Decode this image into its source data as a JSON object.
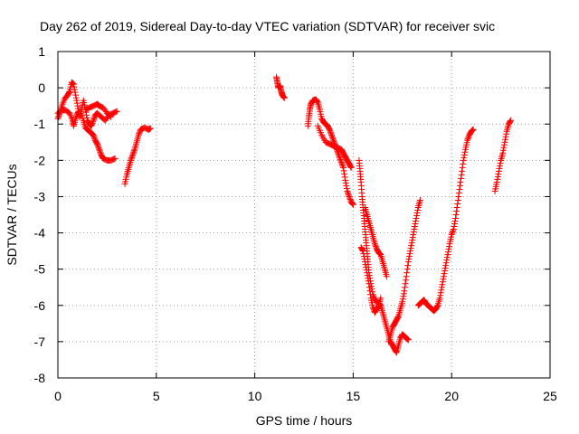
{
  "chart_data": {
    "type": "scatter",
    "title": "Day 262 of 2019, Sidereal Day-to-day VTEC variation (SDTVAR) for receiver svic",
    "xlabel": "GPS time / hours",
    "ylabel": "SDTVAR / TECUs",
    "xlim": [
      0,
      25
    ],
    "ylim": [
      -8,
      1
    ],
    "x_ticks": [
      0,
      5,
      10,
      15,
      20,
      25
    ],
    "x_tick_labels": [
      "0",
      "5",
      "10",
      "15",
      "20",
      "25"
    ],
    "y_ticks": [
      1,
      0,
      -1,
      -2,
      -3,
      -4,
      -5,
      -6,
      -7,
      -8
    ],
    "y_tick_labels": [
      "1",
      "0",
      "-1",
      "-2",
      "-3",
      "-4",
      "-5",
      "-6",
      "-7",
      "-8"
    ],
    "grid": true,
    "marker": "+",
    "series": [
      {
        "name": "SDTVAR",
        "color": "#ff0000",
        "segments": [
          [
            [
              0.0,
              -0.85
            ],
            [
              0.1,
              -0.7
            ],
            [
              0.2,
              -0.5
            ],
            [
              0.35,
              -0.3
            ],
            [
              0.5,
              -0.2
            ],
            [
              0.6,
              -0.1
            ],
            [
              0.7,
              0.15
            ],
            [
              0.8,
              0.1
            ],
            [
              0.9,
              -0.2
            ],
            [
              1.0,
              -0.5
            ],
            [
              1.1,
              -0.8
            ],
            [
              1.2,
              -0.6
            ],
            [
              1.3,
              -0.35
            ],
            [
              1.4,
              -0.6
            ],
            [
              1.5,
              -0.9
            ],
            [
              1.6,
              -1.0
            ],
            [
              1.7,
              -1.05
            ],
            [
              1.8,
              -0.9
            ],
            [
              1.9,
              -0.75
            ],
            [
              2.0,
              -0.7
            ],
            [
              2.2,
              -0.8
            ],
            [
              2.4,
              -0.9
            ],
            [
              2.6,
              -0.75
            ],
            [
              2.8,
              -0.7
            ],
            [
              3.0,
              -0.65
            ]
          ],
          [
            [
              0.0,
              -0.7
            ],
            [
              0.2,
              -0.6
            ],
            [
              0.4,
              -0.62
            ],
            [
              0.6,
              -0.7
            ],
            [
              0.75,
              -0.9
            ],
            [
              0.8,
              -1.05
            ],
            [
              0.9,
              -0.85
            ],
            [
              1.0,
              -0.7
            ],
            [
              1.1,
              -0.65
            ],
            [
              1.3,
              -0.9
            ],
            [
              1.4,
              -1.1
            ],
            [
              1.5,
              -1.15
            ],
            [
              1.6,
              -1.2
            ],
            [
              1.7,
              -1.25
            ],
            [
              1.8,
              -1.3
            ],
            [
              1.9,
              -1.45
            ],
            [
              2.0,
              -1.55
            ],
            [
              2.1,
              -1.7
            ],
            [
              2.2,
              -1.85
            ],
            [
              2.3,
              -1.95
            ],
            [
              2.5,
              -2.0
            ],
            [
              2.7,
              -2.0
            ],
            [
              2.9,
              -1.95
            ]
          ],
          [
            [
              1.4,
              -0.6
            ],
            [
              1.6,
              -0.55
            ],
            [
              1.8,
              -0.5
            ],
            [
              2.0,
              -0.45
            ],
            [
              2.1,
              -0.5
            ],
            [
              2.3,
              -0.55
            ],
            [
              2.5,
              -0.7
            ],
            [
              2.7,
              -0.8
            ]
          ],
          [
            [
              3.4,
              -2.65
            ],
            [
              3.5,
              -2.4
            ],
            [
              3.6,
              -2.2
            ],
            [
              3.7,
              -2.0
            ],
            [
              3.8,
              -1.85
            ],
            [
              3.9,
              -1.7
            ],
            [
              4.0,
              -1.5
            ],
            [
              4.1,
              -1.3
            ],
            [
              4.2,
              -1.15
            ],
            [
              4.4,
              -1.1
            ],
            [
              4.6,
              -1.15
            ],
            [
              4.7,
              -1.12
            ]
          ],
          [
            [
              11.1,
              0.3
            ],
            [
              11.15,
              0.15
            ],
            [
              11.2,
              0.0
            ],
            [
              11.3,
              0.05
            ],
            [
              11.35,
              -0.1
            ],
            [
              11.4,
              -0.2
            ],
            [
              11.5,
              -0.28
            ]
          ],
          [
            [
              12.7,
              -1.05
            ],
            [
              12.75,
              -0.8
            ],
            [
              12.8,
              -0.6
            ],
            [
              12.85,
              -0.45
            ],
            [
              12.95,
              -0.35
            ],
            [
              13.1,
              -0.32
            ],
            [
              13.2,
              -0.4
            ],
            [
              13.3,
              -0.6
            ],
            [
              13.4,
              -0.85
            ],
            [
              13.5,
              -0.95
            ],
            [
              13.6,
              -1.0
            ],
            [
              13.7,
              -1.05
            ],
            [
              13.8,
              -1.15
            ],
            [
              13.9,
              -1.3
            ],
            [
              14.0,
              -1.45
            ],
            [
              14.1,
              -1.6
            ],
            [
              14.2,
              -1.75
            ],
            [
              14.3,
              -1.9
            ],
            [
              14.4,
              -2.05
            ],
            [
              14.5,
              -2.2
            ],
            [
              14.6,
              -2.55
            ],
            [
              14.7,
              -2.85
            ],
            [
              14.8,
              -3.0
            ],
            [
              14.9,
              -3.15
            ],
            [
              15.0,
              -3.22
            ]
          ],
          [
            [
              13.2,
              -1.05
            ],
            [
              13.4,
              -1.3
            ],
            [
              13.6,
              -1.5
            ],
            [
              13.8,
              -1.55
            ],
            [
              14.0,
              -1.6
            ],
            [
              14.2,
              -1.65
            ],
            [
              14.4,
              -1.7
            ],
            [
              14.5,
              -1.8
            ],
            [
              14.6,
              -1.9
            ],
            [
              14.7,
              -2.0
            ],
            [
              14.8,
              -2.1
            ],
            [
              14.9,
              -2.2
            ]
          ],
          [
            [
              15.3,
              -2.0
            ],
            [
              15.35,
              -2.3
            ],
            [
              15.4,
              -2.6
            ],
            [
              15.45,
              -3.0
            ],
            [
              15.5,
              -3.3
            ],
            [
              15.55,
              -3.6
            ],
            [
              15.6,
              -3.9
            ],
            [
              15.65,
              -4.2
            ],
            [
              15.7,
              -4.5
            ],
            [
              15.75,
              -4.8
            ],
            [
              15.8,
              -5.1
            ],
            [
              15.9,
              -5.4
            ],
            [
              16.0,
              -5.7
            ],
            [
              16.1,
              -5.85
            ],
            [
              16.2,
              -5.9
            ],
            [
              16.3,
              -5.95
            ],
            [
              16.4,
              -6.0
            ],
            [
              16.5,
              -6.2
            ],
            [
              16.6,
              -6.4
            ],
            [
              16.7,
              -6.6
            ],
            [
              16.8,
              -6.8
            ],
            [
              16.9,
              -7.0
            ],
            [
              17.0,
              -7.1
            ],
            [
              17.1,
              -7.2
            ],
            [
              17.2,
              -7.3
            ],
            [
              17.3,
              -7.1
            ],
            [
              17.4,
              -6.9
            ],
            [
              17.5,
              -6.8
            ],
            [
              17.6,
              -6.85
            ],
            [
              17.7,
              -6.9
            ],
            [
              17.8,
              -6.95
            ]
          ],
          [
            [
              15.4,
              -4.4
            ],
            [
              15.5,
              -4.5
            ],
            [
              15.6,
              -4.8
            ],
            [
              15.7,
              -5.1
            ],
            [
              15.8,
              -5.4
            ],
            [
              15.9,
              -5.8
            ],
            [
              16.0,
              -6.05
            ],
            [
              16.1,
              -6.2
            ],
            [
              16.2,
              -6.1
            ],
            [
              16.3,
              -6.0
            ],
            [
              16.4,
              -5.8
            ]
          ],
          [
            [
              15.6,
              -3.3
            ],
            [
              15.7,
              -3.5
            ],
            [
              15.8,
              -3.7
            ],
            [
              15.9,
              -3.9
            ],
            [
              16.0,
              -4.1
            ],
            [
              16.1,
              -4.3
            ],
            [
              16.2,
              -4.45
            ],
            [
              16.3,
              -4.55
            ],
            [
              16.4,
              -4.6
            ],
            [
              16.5,
              -4.8
            ],
            [
              16.6,
              -5.0
            ],
            [
              16.7,
              -5.2
            ]
          ],
          [
            [
              16.8,
              -7.0
            ],
            [
              16.9,
              -6.8
            ],
            [
              17.0,
              -6.6
            ],
            [
              17.1,
              -6.5
            ],
            [
              17.2,
              -6.4
            ],
            [
              17.3,
              -6.3
            ],
            [
              17.4,
              -6.1
            ],
            [
              17.5,
              -5.9
            ],
            [
              17.6,
              -5.6
            ],
            [
              17.7,
              -5.2
            ],
            [
              17.8,
              -4.8
            ],
            [
              17.9,
              -4.5
            ],
            [
              18.0,
              -4.2
            ],
            [
              18.1,
              -3.9
            ],
            [
              18.2,
              -3.6
            ],
            [
              18.3,
              -3.3
            ],
            [
              18.4,
              -3.1
            ]
          ],
          [
            [
              18.3,
              -6.0
            ],
            [
              18.4,
              -5.95
            ],
            [
              18.5,
              -5.9
            ],
            [
              18.6,
              -5.85
            ],
            [
              18.7,
              -5.95
            ],
            [
              18.8,
              -6.0
            ],
            [
              18.9,
              -6.05
            ],
            [
              19.0,
              -6.1
            ],
            [
              19.1,
              -6.15
            ],
            [
              19.2,
              -6.1
            ],
            [
              19.3,
              -6.0
            ],
            [
              19.4,
              -5.8
            ],
            [
              19.5,
              -5.5
            ],
            [
              19.6,
              -5.2
            ],
            [
              19.7,
              -4.9
            ],
            [
              19.8,
              -4.6
            ],
            [
              19.9,
              -4.3
            ],
            [
              20.0,
              -4.05
            ],
            [
              20.1,
              -3.9
            ],
            [
              20.2,
              -3.6
            ],
            [
              20.3,
              -3.2
            ],
            [
              20.4,
              -2.8
            ],
            [
              20.5,
              -2.4
            ],
            [
              20.6,
              -2.0
            ],
            [
              20.7,
              -1.7
            ],
            [
              20.8,
              -1.45
            ],
            [
              20.9,
              -1.3
            ],
            [
              21.0,
              -1.2
            ],
            [
              21.1,
              -1.15
            ]
          ],
          [
            [
              22.2,
              -2.85
            ],
            [
              22.3,
              -2.6
            ],
            [
              22.4,
              -2.3
            ],
            [
              22.5,
              -2.0
            ],
            [
              22.6,
              -1.8
            ],
            [
              22.7,
              -1.5
            ],
            [
              22.8,
              -1.2
            ],
            [
              22.9,
              -1.0
            ],
            [
              23.0,
              -0.9
            ]
          ]
        ]
      }
    ]
  }
}
